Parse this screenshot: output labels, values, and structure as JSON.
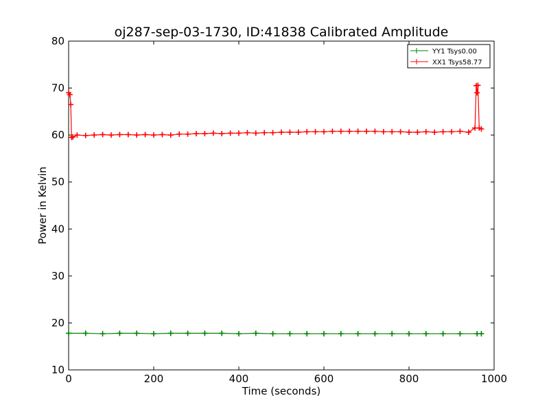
{
  "chart_data": {
    "type": "line",
    "title": "oj287-sep-03-1730, ID:41838 Calibrated Amplitude",
    "xlabel": "Time (seconds)",
    "ylabel": "Power in Kelvin",
    "xlim": [
      0,
      1000
    ],
    "ylim": [
      10,
      80
    ],
    "xticks": [
      0,
      200,
      400,
      600,
      800,
      1000
    ],
    "yticks": [
      10,
      20,
      30,
      40,
      50,
      60,
      70,
      80
    ],
    "grid": false,
    "legend_position": "top-right",
    "series": [
      {
        "name": "YY1 Tsys0.00",
        "color": "#008000",
        "marker": "+",
        "x": [
          0,
          40,
          80,
          120,
          160,
          200,
          240,
          280,
          320,
          360,
          400,
          440,
          480,
          520,
          560,
          600,
          640,
          680,
          720,
          760,
          800,
          840,
          880,
          920,
          960,
          970
        ],
        "y": [
          17.8,
          17.8,
          17.7,
          17.8,
          17.8,
          17.7,
          17.8,
          17.8,
          17.8,
          17.8,
          17.7,
          17.8,
          17.7,
          17.7,
          17.7,
          17.7,
          17.7,
          17.7,
          17.7,
          17.7,
          17.7,
          17.7,
          17.7,
          17.7,
          17.7,
          17.7
        ]
      },
      {
        "name": "XX1 Tsys58.77",
        "color": "#ff0000",
        "marker": "+",
        "x": [
          0,
          3,
          5,
          7,
          10,
          20,
          40,
          60,
          80,
          100,
          120,
          140,
          160,
          180,
          200,
          220,
          240,
          260,
          280,
          300,
          320,
          340,
          360,
          380,
          400,
          420,
          440,
          460,
          480,
          500,
          520,
          540,
          560,
          580,
          600,
          620,
          640,
          660,
          680,
          700,
          720,
          740,
          760,
          780,
          800,
          820,
          840,
          860,
          880,
          900,
          920,
          940,
          955,
          958,
          960,
          962,
          965,
          970
        ],
        "y": [
          69.0,
          68.6,
          66.5,
          59.5,
          59.6,
          60.0,
          59.9,
          60.0,
          60.1,
          60.0,
          60.1,
          60.1,
          60.0,
          60.1,
          60.0,
          60.1,
          60.0,
          60.2,
          60.2,
          60.3,
          60.3,
          60.4,
          60.3,
          60.4,
          60.4,
          60.5,
          60.4,
          60.5,
          60.5,
          60.6,
          60.6,
          60.6,
          60.7,
          60.7,
          60.7,
          60.8,
          60.8,
          60.8,
          60.8,
          60.8,
          60.8,
          60.7,
          60.7,
          60.7,
          60.6,
          60.6,
          60.7,
          60.6,
          60.7,
          60.7,
          60.8,
          60.6,
          61.5,
          70.5,
          69.0,
          70.6,
          61.5,
          61.3
        ]
      }
    ]
  }
}
